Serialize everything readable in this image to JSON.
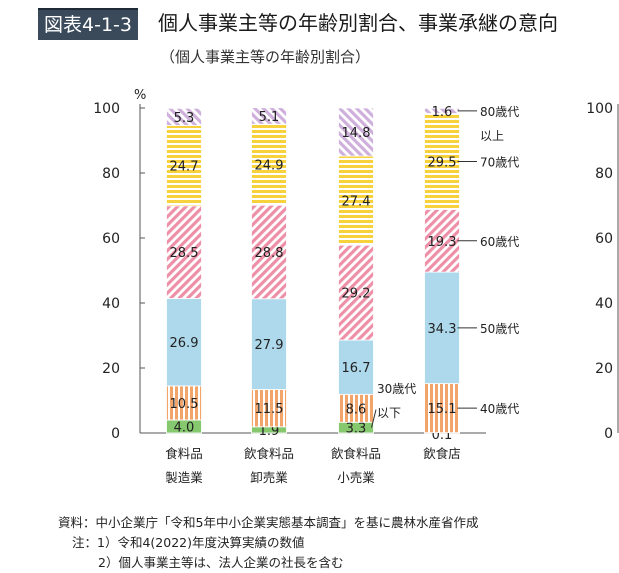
{
  "header": {
    "figure_label": "図表4-1-3",
    "title": "個人事業主等の年齢別割合、事業承継の意向"
  },
  "subtitle": "（個人事業主等の年齢別割合）",
  "notes": {
    "source": "資料：中小企業庁「令和5年中小企業実態基本調査」を基に農林水産省作成",
    "note1": "注：1）令和4(2022)年度決算実績の数値",
    "note2": "2）個人事業主等は、法人企業の社長を含む"
  },
  "colors": {
    "under30": "#86c86e",
    "s40": "#f2a56a",
    "s50": "#aed9ec",
    "s60": "#ee8fa8",
    "s70": "#f7d23c",
    "over80": "#cfb0dc",
    "axis": "#555555"
  },
  "chart_data": {
    "type": "bar",
    "stacked": true,
    "ylabel": "%",
    "ylim": [
      0,
      100
    ],
    "yticks": [
      0,
      20,
      40,
      60,
      80,
      100
    ],
    "categories": [
      [
        "食料品",
        "製造業"
      ],
      [
        "飲食料品",
        "卸売業"
      ],
      [
        "飲食料品",
        "小売業"
      ],
      [
        "飲食店"
      ]
    ],
    "series": [
      {
        "name": "30歳代以下",
        "label_lines": [
          "30歳代",
          "以下"
        ],
        "key": "under30",
        "values": [
          4.0,
          1.9,
          3.3,
          0.1
        ]
      },
      {
        "name": "40歳代",
        "label_lines": [
          "40歳代"
        ],
        "key": "s40",
        "values": [
          10.5,
          11.5,
          8.6,
          15.1
        ]
      },
      {
        "name": "50歳代",
        "label_lines": [
          "50歳代"
        ],
        "key": "s50",
        "values": [
          26.9,
          27.9,
          16.7,
          34.3
        ]
      },
      {
        "name": "60歳代",
        "label_lines": [
          "60歳代"
        ],
        "key": "s60",
        "values": [
          28.5,
          28.8,
          29.2,
          19.3
        ]
      },
      {
        "name": "70歳代",
        "label_lines": [
          "70歳代"
        ],
        "key": "s70",
        "values": [
          24.7,
          24.9,
          27.4,
          29.5
        ]
      },
      {
        "name": "80歳代以上",
        "label_lines": [
          "80歳代",
          "以上"
        ],
        "key": "over80",
        "values": [
          5.3,
          5.1,
          14.8,
          1.6
        ]
      }
    ],
    "second_chart_yticks": [
      0,
      20,
      40,
      60,
      80,
      100
    ]
  }
}
